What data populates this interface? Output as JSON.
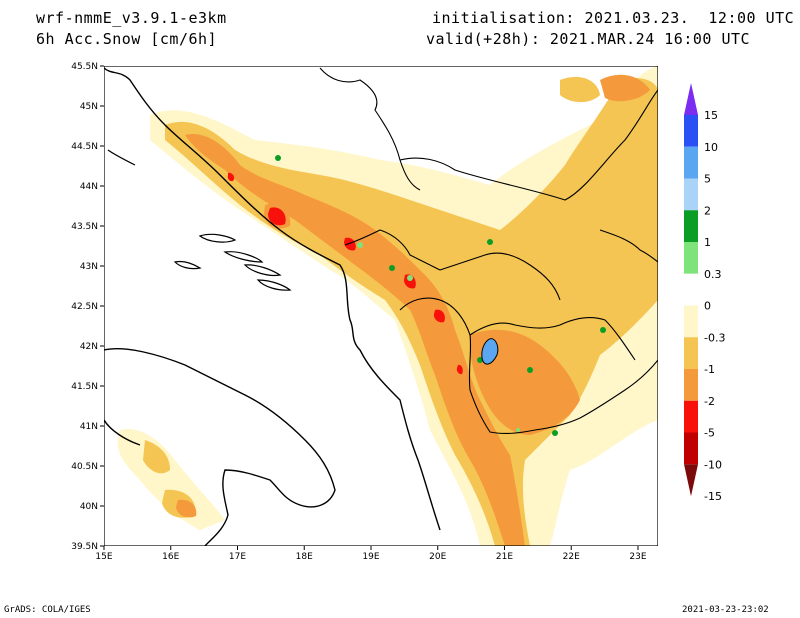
{
  "header": {
    "model": "wrf-nmmE_v3.9.1-e3km",
    "field": "6h Acc.Snow [cm/6h]",
    "init": "initialisation: 2021.03.23.  12:00 UTC",
    "valid": "valid(+28h): 2021.MAR.24 16:00 UTC"
  },
  "map": {
    "lat_labels": [
      "45.5N",
      "45N",
      "44.5N",
      "44N",
      "43.5N",
      "43N",
      "42.5N",
      "42N",
      "41.5N",
      "41N",
      "40.5N",
      "40N",
      "39.5N"
    ],
    "lon_labels": [
      "15E",
      "16E",
      "17E",
      "18E",
      "19E",
      "20E",
      "21E",
      "22E",
      "23E"
    ],
    "lat_range": [
      39.5,
      45.5
    ],
    "lon_range": [
      15,
      23.3
    ]
  },
  "colorbar": {
    "labels": [
      "15",
      "10",
      "5",
      "2",
      "1",
      "0.3",
      "0",
      "-0.3",
      "-1",
      "-2",
      "-5",
      "-10",
      "-15"
    ],
    "colors": [
      "#7b2cf0",
      "#2a4ff5",
      "#5aa6f0",
      "#a9d3f7",
      "#0c9d24",
      "#7de37a",
      "#ffffff",
      "#fff6c9",
      "#f4c552",
      "#f59a3c",
      "#f8110a",
      "#c00000",
      "#7d0a0a"
    ]
  },
  "footer": {
    "left": "GrADS: COLA/IGES",
    "right": "2021-03-23-23:02"
  }
}
